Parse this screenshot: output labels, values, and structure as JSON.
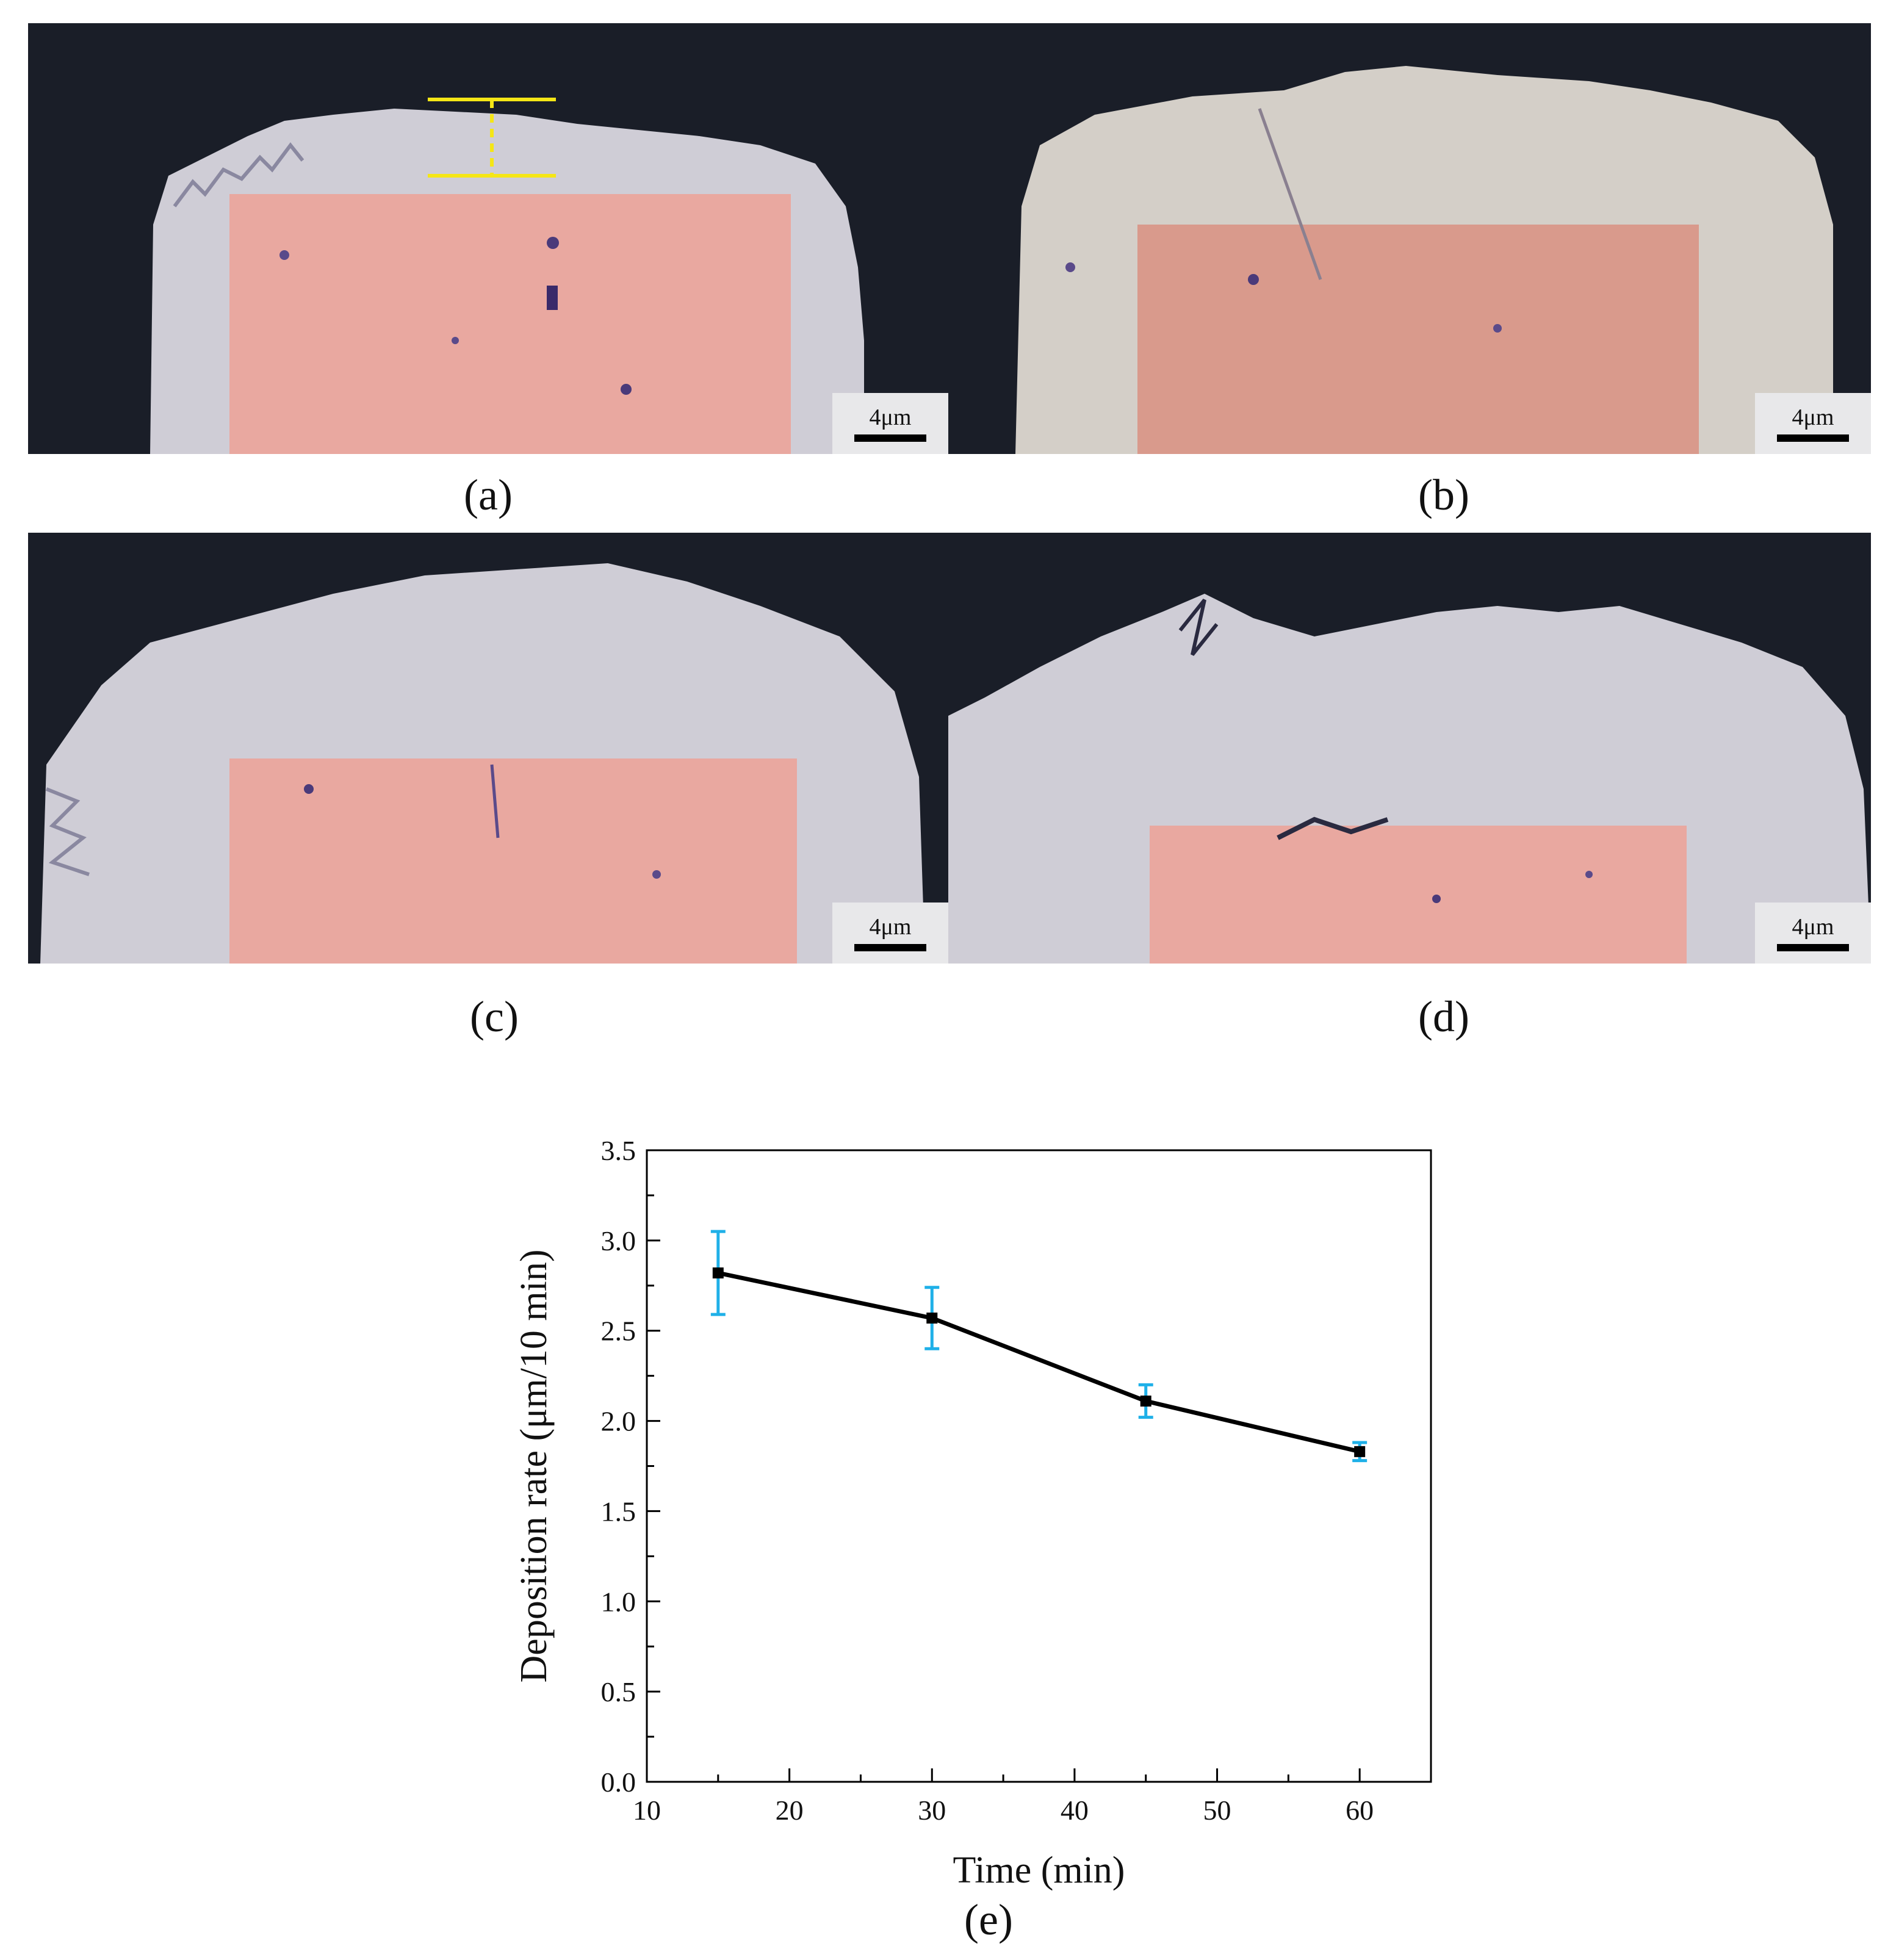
{
  "panels": [
    {
      "id": "a",
      "label": "(a)",
      "scale_label": "4μm"
    },
    {
      "id": "b",
      "label": "(b)",
      "scale_label": "4μm"
    },
    {
      "id": "c",
      "label": "(c)",
      "scale_label": "4μm"
    },
    {
      "id": "d",
      "label": "(d)",
      "scale_label": "4μm"
    }
  ],
  "colors": {
    "background_dark": "#1a1e28",
    "coating": "#cfcdd6",
    "substrate": "#e9a8a0",
    "measure_marker": "#f5e616",
    "series_line": "#000000",
    "error_bar": "#1fb0e8"
  },
  "chart_label": "(e)",
  "chart_data": {
    "type": "line",
    "title": "",
    "xlabel": "Time (min)",
    "ylabel": "Deposition rate (μm/10 min)",
    "xlim": [
      10,
      65
    ],
    "ylim": [
      0,
      3.5
    ],
    "xticks": [
      10,
      20,
      30,
      40,
      50,
      60
    ],
    "yticks": [
      0.0,
      0.5,
      1.0,
      1.5,
      2.0,
      2.5,
      3.0,
      3.5
    ],
    "ytick_labels": [
      "0.0",
      "0.5",
      "1.0",
      "1.5",
      "2.0",
      "2.5",
      "3.0",
      "3.5"
    ],
    "grid": false,
    "series": [
      {
        "x": [
          15,
          30,
          45,
          60
        ],
        "y": [
          2.82,
          2.57,
          2.11,
          1.83
        ],
        "error": [
          0.23,
          0.17,
          0.09,
          0.05
        ]
      }
    ]
  }
}
